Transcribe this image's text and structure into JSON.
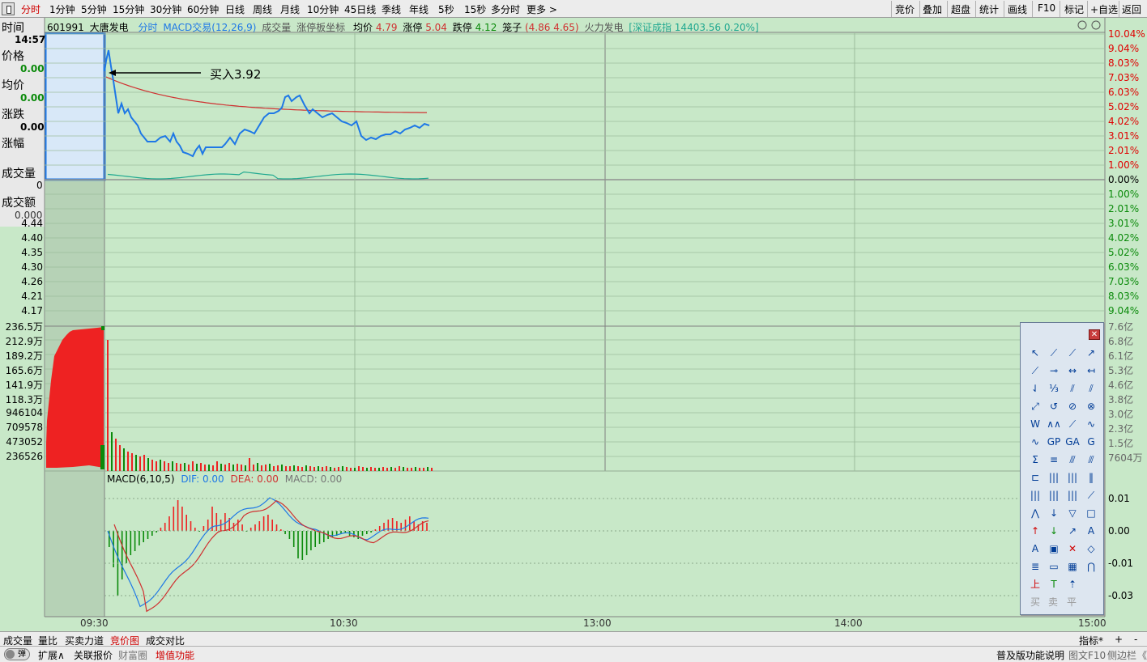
{
  "toolbar": {
    "items": [
      "分时",
      "1分钟",
      "5分钟",
      "15分钟",
      "30分钟",
      "60分钟",
      "日线",
      "周线",
      "月线",
      "10分钟",
      "45日线",
      "季线",
      "年线",
      "5秒",
      "15秒",
      "多分时",
      "更多 >"
    ],
    "right_items": [
      "竞价",
      "叠加",
      "超盘",
      "统计",
      "画线",
      "F10",
      "标记",
      "+自选",
      "返回"
    ]
  },
  "info_panel": {
    "time_label": "时间",
    "time_value": "14:57",
    "price_label": "价格",
    "price_value": "0.00",
    "avg_label": "均价",
    "avg_value": "0.00",
    "change_label": "涨跌",
    "change_value": "0.00",
    "pct_label": "涨幅",
    "vol_label": "成交量",
    "vol_value": "0",
    "amount_label": "成交额",
    "amount_value": "0.000"
  },
  "legend": {
    "code": "601991",
    "name": "大唐发电",
    "mode": "分时",
    "macd_trade": "MACD交易(12,26,9)",
    "vol": "成交量",
    "limit_axis": "涨停板坐标",
    "avg_label": "均价",
    "avg_value": "4.79",
    "up_label": "涨停",
    "up_value": "5.04",
    "down_label": "跌停",
    "down_value": "4.12",
    "cage_label": "笼子",
    "cage_value": "(4.86  4.65)",
    "sector": "火力发电",
    "index": "[深证成指 14403.56 0.20%]"
  },
  "annotation": "买入3.92",
  "price_axis_left": [
    "4.44",
    "4.40",
    "4.35",
    "4.30",
    "4.26",
    "4.21",
    "4.17"
  ],
  "pct_axis_right": [
    "10.04%",
    "9.04%",
    "8.03%",
    "7.03%",
    "6.03%",
    "5.02%",
    "4.02%",
    "3.01%",
    "2.01%",
    "1.00%",
    "0.00%",
    "1.00%",
    "2.01%",
    "3.01%",
    "4.02%",
    "5.02%",
    "6.03%",
    "7.03%",
    "8.03%",
    "9.04%"
  ],
  "vol_axis_left": [
    "236.5万",
    "212.9万",
    "189.2万",
    "165.6万",
    "141.9万",
    "118.3万",
    "946104",
    "709578",
    "473052",
    "236526"
  ],
  "vol_axis_right": [
    "7.6亿",
    "6.8亿",
    "6.1亿",
    "5.3亿",
    "4.6亿",
    "3.8亿",
    "3.0亿",
    "2.3亿",
    "1.5亿",
    "7604万"
  ],
  "macd": {
    "title": "MACD(6,10,5)",
    "dif": "DIF: 0.00",
    "dea": "DEA: 0.00",
    "macd": "MACD: 0.00",
    "axis": [
      "0.01",
      "0.00",
      "-0.01",
      "-0.03"
    ]
  },
  "x_axis": [
    "09:30",
    "10:30",
    "13:00",
    "14:00",
    "15:00"
  ],
  "bottom_tabs": [
    "成交量",
    "量比",
    "买卖力道",
    "竞价图",
    "成交对比"
  ],
  "bottom_right": [
    "指标*",
    "+",
    "-"
  ],
  "status": {
    "toggle": "弹",
    "left": [
      "扩展∧",
      "关联报价",
      "财富圈",
      "增值功能"
    ],
    "right": [
      "普及版功能说明",
      "图文F10",
      "侧边栏",
      "《"
    ]
  },
  "colors": {
    "price_line": "#1e78e6",
    "avg_line": "#d03030",
    "up": "#ee2222",
    "down": "#0a8a0a",
    "bg": "#c8e8c8",
    "grid": "#a8c8a8"
  },
  "tools": {
    "bottom": [
      "买",
      "卖",
      "平"
    ],
    "text_tool": "A"
  }
}
